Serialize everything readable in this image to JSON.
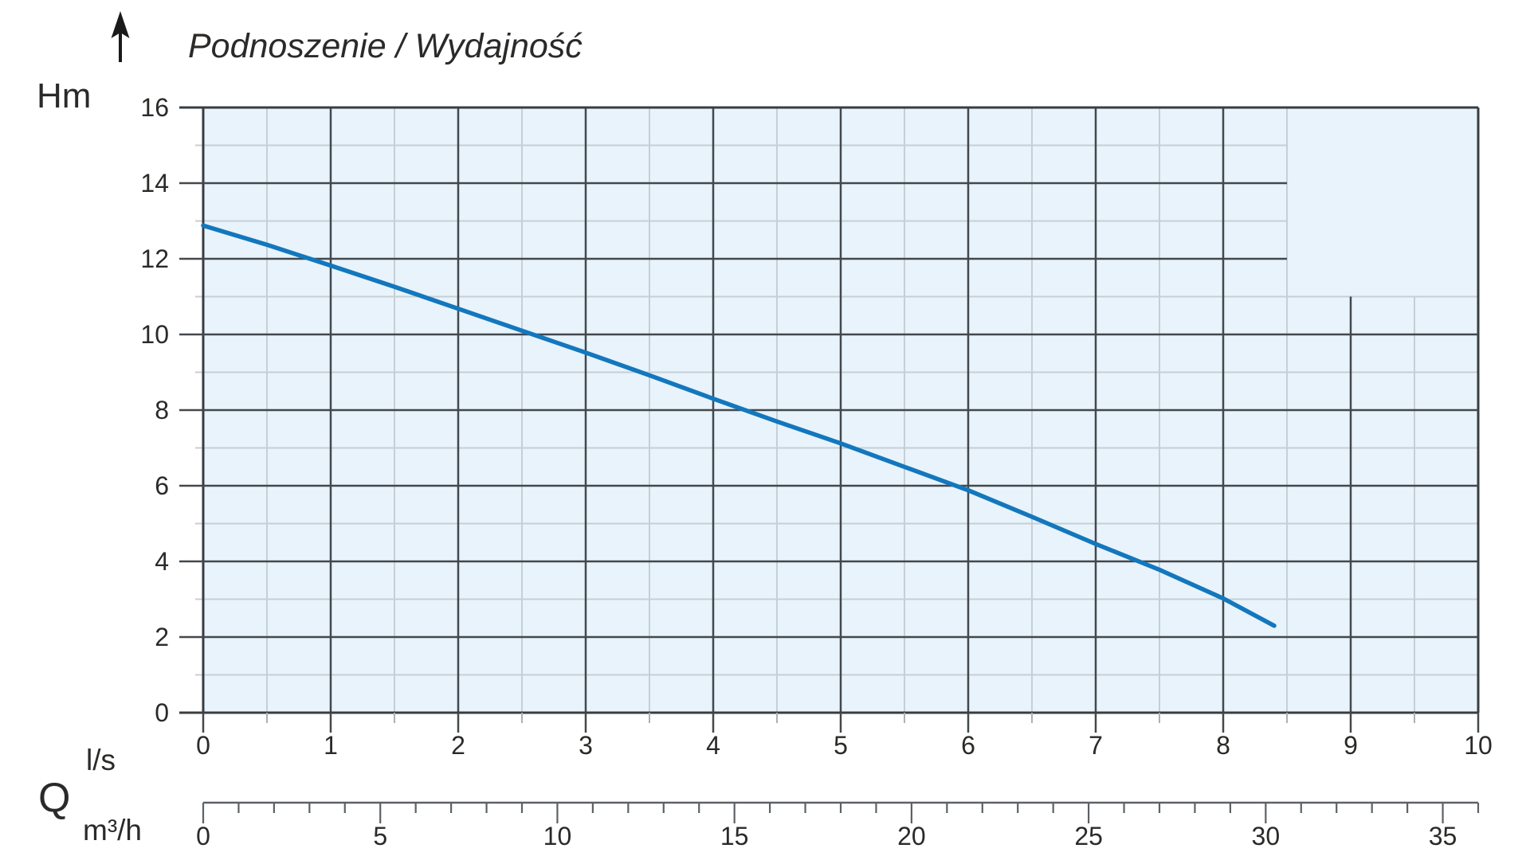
{
  "title": "Podnoszenie / Wydajność",
  "labels": {
    "y_unit": "Hm",
    "flow_symbol": "Q",
    "flow_unit_ls": "l/s",
    "flow_unit_m3h": "m³/h"
  },
  "colors": {
    "plot_background": "#e8f3fb",
    "major_grid": "#43484d",
    "border": "#383d41",
    "minor_grid": "#c6cfd6",
    "half_tick": "#a9b1b8",
    "ruler": "#5d6165",
    "text": "#2b2a28",
    "curve": "#1377bd",
    "arrow": "#1a1a1a"
  },
  "chart_data": {
    "type": "line",
    "title": "Podnoszenie / Wydajność",
    "y_axis": {
      "label": "Hm",
      "min": 0,
      "max": 16,
      "major_step": 2,
      "minor_step": 1,
      "major_tick_labels": [
        16,
        14,
        12,
        10,
        8,
        6,
        4,
        2,
        0
      ]
    },
    "x_axis_primary": {
      "label": "l/s",
      "min": 0,
      "max": 10,
      "major_step": 1,
      "minor_step": 0.5,
      "tick_labels": [
        0,
        1,
        2,
        3,
        4,
        5,
        6,
        7,
        8,
        9,
        10
      ]
    },
    "x_axis_secondary": {
      "label": "m³/h",
      "min": 0,
      "max": 36,
      "major_step": 5,
      "minor_step": 1,
      "tick_labels": [
        0,
        5,
        10,
        15,
        20,
        25,
        30,
        35
      ]
    },
    "grid_clip": {
      "comment_like_structure": "grid lines right of beyond_x (l/s) exist only below below_y (Hm)",
      "beyond_x": 8.5,
      "below_y": 11
    },
    "legend_position": "none",
    "grid": "on",
    "series": [
      {
        "name": "head-vs-flow-curve",
        "color": "#1377bd",
        "x_unit": "l/s",
        "y_unit": "Hm",
        "points": [
          [
            0,
            12.88
          ],
          [
            0.5,
            12.37
          ],
          [
            1,
            11.82
          ],
          [
            1.5,
            11.26
          ],
          [
            2,
            10.68
          ],
          [
            2.5,
            10.1
          ],
          [
            3,
            9.52
          ],
          [
            3.5,
            8.92
          ],
          [
            4,
            8.3
          ],
          [
            4.5,
            7.7
          ],
          [
            5,
            7.12
          ],
          [
            5.5,
            6.5
          ],
          [
            6,
            5.88
          ],
          [
            6.5,
            5.18
          ],
          [
            7,
            4.46
          ],
          [
            7.5,
            3.78
          ],
          [
            8,
            3.02
          ],
          [
            8.4,
            2.3
          ]
        ]
      }
    ]
  }
}
